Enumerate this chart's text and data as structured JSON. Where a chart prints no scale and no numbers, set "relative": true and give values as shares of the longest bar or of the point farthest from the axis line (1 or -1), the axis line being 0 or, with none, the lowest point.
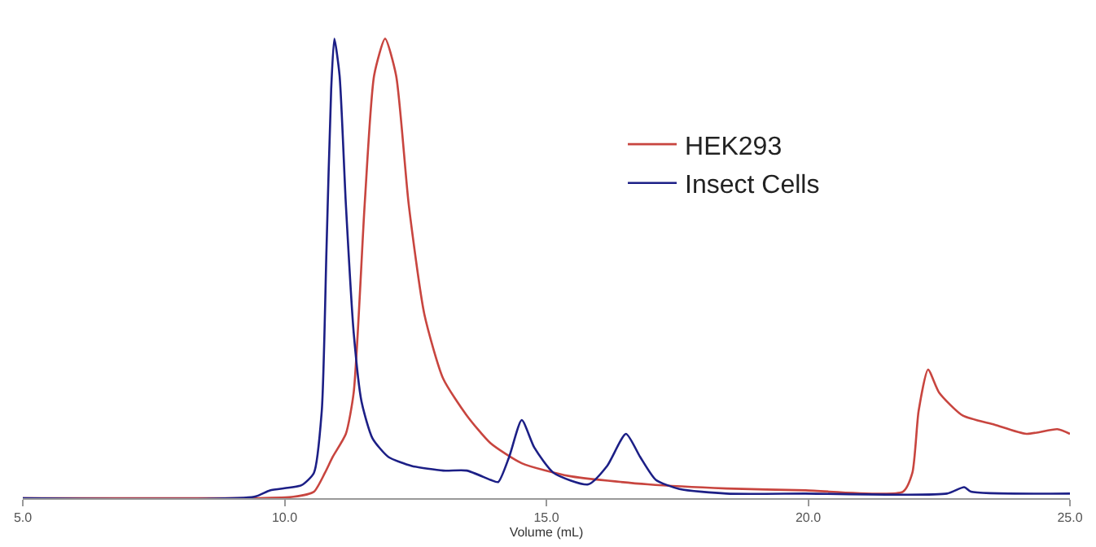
{
  "chart_data": {
    "type": "line",
    "relative": true,
    "xlabel": "Volume (mL)",
    "xlim": [
      5,
      25
    ],
    "xticks": [
      {
        "value": 5,
        "label": "5.0"
      },
      {
        "value": 10,
        "label": "10.0"
      },
      {
        "value": 15,
        "label": "15.0"
      },
      {
        "value": 20,
        "label": "20.0"
      },
      {
        "value": 25,
        "label": "25.0"
      }
    ],
    "legend": "right",
    "marker": "none",
    "line_style": "solid",
    "series": [
      {
        "name": "HEK293",
        "color": "#c8453f",
        "x": [
          5.0,
          9.42,
          10.17,
          10.56,
          10.77,
          10.92,
          11.17,
          11.32,
          11.53,
          11.71,
          11.92,
          12.13,
          12.37,
          12.67,
          13.03,
          13.48,
          13.93,
          14.53,
          15.44,
          16.94,
          18.44,
          19.95,
          21.81,
          21.99,
          22.11,
          22.29,
          22.5,
          22.95,
          23.56,
          24.17,
          24.76,
          25.0
        ],
        "values": [
          0,
          0,
          0.003,
          0.014,
          0.055,
          0.09,
          0.14,
          0.23,
          0.64,
          0.92,
          1.0,
          0.92,
          0.64,
          0.4,
          0.26,
          0.18,
          0.12,
          0.076,
          0.048,
          0.03,
          0.021,
          0.017,
          0.014,
          0.055,
          0.19,
          0.28,
          0.23,
          0.18,
          0.16,
          0.14,
          0.15,
          0.14
        ]
      },
      {
        "name": "Insect Cells",
        "color": "#1c1f86",
        "x": [
          5.0,
          9.42,
          9.72,
          10.32,
          10.56,
          10.71,
          10.8,
          10.89,
          10.95,
          11.05,
          11.17,
          11.32,
          11.47,
          11.68,
          11.98,
          12.43,
          13.03,
          13.48,
          13.93,
          14.08,
          14.29,
          14.53,
          14.77,
          15.14,
          15.8,
          16.16,
          16.52,
          16.79,
          17.09,
          17.54,
          18.44,
          19.95,
          22.65,
          22.98,
          23.11,
          25.0
        ],
        "values": [
          0,
          0.003,
          0.017,
          0.028,
          0.055,
          0.19,
          0.54,
          0.89,
          1.0,
          0.92,
          0.64,
          0.36,
          0.21,
          0.13,
          0.09,
          0.07,
          0.06,
          0.06,
          0.04,
          0.035,
          0.09,
          0.17,
          0.11,
          0.055,
          0.03,
          0.07,
          0.14,
          0.09,
          0.04,
          0.02,
          0.01,
          0.01,
          0.01,
          0.024,
          0.014,
          0.01
        ]
      }
    ]
  }
}
